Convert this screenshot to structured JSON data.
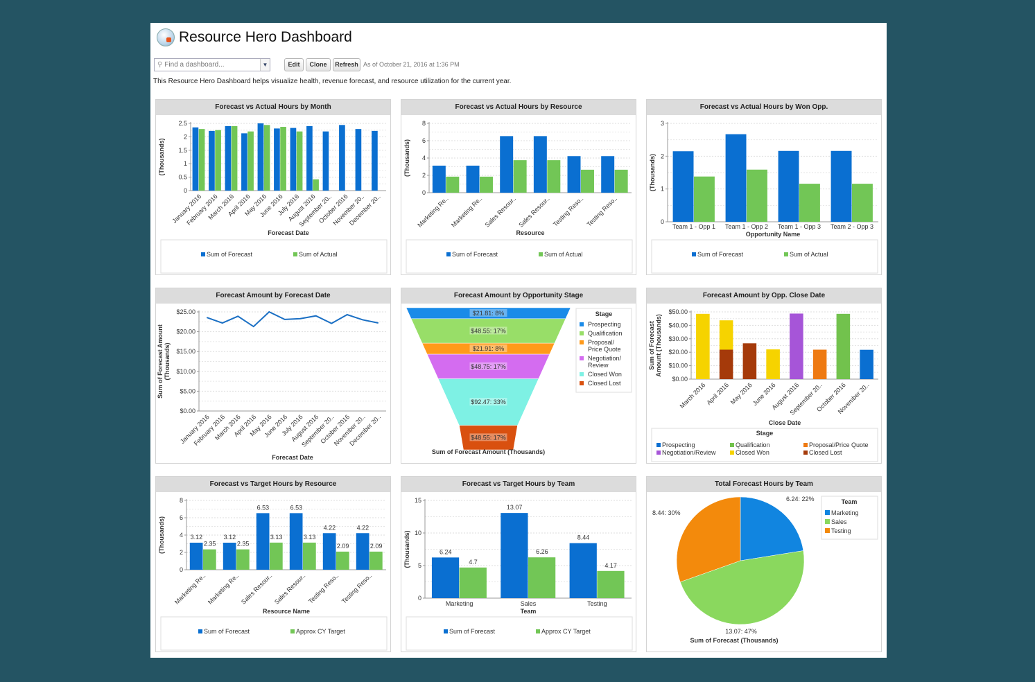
{
  "header": {
    "title": "Resource Hero Dashboard",
    "search_placeholder": "Find a dashboard...",
    "buttons": {
      "edit": "Edit",
      "clone": "Clone",
      "refresh": "Refresh"
    },
    "timestamp": "As of October 21, 2016 at 1:36 PM",
    "description": "This Resource Hero Dashboard helps visualize health, revenue forecast, and resource utilization for the current year.",
    "icons": {
      "search": "search-icon",
      "dropdown": "chevron-down-icon",
      "logo": "resource-hero-logo"
    }
  },
  "chart_data": [
    {
      "title": "Forecast vs Actual Hours by Month",
      "type": "bar",
      "xlabel": "Forecast Date",
      "ylabel": [
        "(Thousands)"
      ],
      "ylim": [
        0,
        2.5
      ],
      "yticks": [
        "0",
        "0.5",
        "1",
        "1.5",
        "2",
        "2.5"
      ],
      "grid": true,
      "legend": "bottom",
      "categories": [
        "January 2016",
        "February 2016",
        "March 2016",
        "April 2016",
        "May 2016",
        "June 2016",
        "July 2016",
        "August 2016",
        "September 20..",
        "October 2016",
        "November 20..",
        "December 20.."
      ],
      "series": [
        {
          "name": "Sum of Forecast",
          "color": "#0a6fd1",
          "values": [
            2.35,
            2.22,
            2.4,
            2.13,
            2.5,
            2.31,
            2.33,
            2.4,
            2.2,
            2.44,
            2.29,
            2.22
          ]
        },
        {
          "name": "Sum of Actual",
          "color": "#72c656",
          "values": [
            2.29,
            2.25,
            2.4,
            2.2,
            2.44,
            2.37,
            2.2,
            0.42,
            null,
            null,
            null,
            null
          ]
        }
      ]
    },
    {
      "title": "Forecast vs Actual Hours by Resource",
      "type": "bar",
      "xlabel": "Resource",
      "ylabel": [
        "(Thousands)"
      ],
      "ylim": [
        0,
        8
      ],
      "yticks": [
        "0",
        "2",
        "4",
        "6",
        "8"
      ],
      "grid": true,
      "legend": "bottom",
      "categories": [
        "Marketing Re..",
        "Marketing Re..",
        "Sales Resour..",
        "Sales Resour..",
        "Testing Reso..",
        "Testing Reso.."
      ],
      "series": [
        {
          "name": "Sum of Forecast",
          "color": "#0a6fd1",
          "values": [
            3.12,
            3.12,
            6.53,
            6.53,
            4.22,
            4.22
          ]
        },
        {
          "name": "Sum of Actual",
          "color": "#72c656",
          "values": [
            1.85,
            1.85,
            3.75,
            3.75,
            2.65,
            2.65
          ]
        }
      ]
    },
    {
      "title": "Forecast vs Actual Hours by Won Opp.",
      "type": "bar",
      "xlabel": "Opportunity Name",
      "ylabel": [
        "(Thousands)"
      ],
      "ylim": [
        0,
        3
      ],
      "yticks": [
        "0",
        "1",
        "2",
        "3"
      ],
      "grid": true,
      "legend": "bottom",
      "categories": [
        "Team 1 - Opp 1",
        "Team 1 - Opp 2",
        "Team 1 - Opp 3",
        "Team 2 - Opp 3"
      ],
      "series": [
        {
          "name": "Sum of Forecast",
          "color": "#0a6fd1",
          "values": [
            2.15,
            2.67,
            2.16,
            2.16
          ]
        },
        {
          "name": "Sum of Actual",
          "color": "#72c656",
          "values": [
            1.38,
            1.59,
            1.16,
            1.16
          ]
        }
      ]
    },
    {
      "title": "Forecast Amount by Forecast Date",
      "type": "line",
      "xlabel": "Forecast Date",
      "ylabel": [
        "Sum of Forecast Amount",
        "(Thousands)"
      ],
      "ylim": [
        0,
        25
      ],
      "yticks": [
        "$0.00",
        "$5.00",
        "$10.00",
        "$15.00",
        "$20.00",
        "$25.00"
      ],
      "grid": true,
      "categories": [
        "January 2016",
        "February 2016",
        "March 2016",
        "April 2016",
        "May 2016",
        "June 2016",
        "July 2016",
        "August 2016",
        "September 20..",
        "October 2016",
        "November 20..",
        "December 20.."
      ],
      "series": [
        {
          "color": "#1a6fc4",
          "values": [
            23.6,
            22.2,
            23.9,
            21.3,
            25.0,
            23.1,
            23.3,
            24.0,
            22.1,
            24.3,
            23.0,
            22.2
          ]
        }
      ]
    },
    {
      "title": "Forecast Amount by Opportunity Stage",
      "type": "funnel",
      "xlabel": "Sum of Forecast Amount (Thousands)",
      "legend_title": "Stage",
      "legend": "right",
      "stages": [
        {
          "name": "Prospecting",
          "color": "#1a8be8",
          "value": 21.81,
          "label": "$21.81: 8%"
        },
        {
          "name": "Qualification",
          "color": "#98de68",
          "value": 48.55,
          "label": "$48.55: 17%"
        },
        {
          "name": "Proposal/ Price Quote",
          "color": "#ff9a1a",
          "value": 21.91,
          "label": "$21.91: 8%"
        },
        {
          "name": "Negotiation/ Review",
          "color": "#d46cf0",
          "value": 48.75,
          "label": "$48.75: 17%"
        },
        {
          "name": "Closed Won",
          "color": "#7ef1e4",
          "value": 92.47,
          "label": "$92.47: 33%"
        },
        {
          "name": "Closed Lost",
          "color": "#d9500f",
          "value": 48.55,
          "label": "$48.55: 17%"
        }
      ]
    },
    {
      "title": "Forecast Amount by Opp. Close Date",
      "type": "bar",
      "stacked": true,
      "xlabel": "Close Date",
      "ylabel": [
        "Sum of Forecast",
        "Amount (Thousands)"
      ],
      "ylim": [
        0,
        50
      ],
      "yticks": [
        "$0.00",
        "$10.00",
        "$20.00",
        "$30.00",
        "$40.00",
        "$50.00"
      ],
      "grid": true,
      "legend": "bottom",
      "legend_title": "Stage",
      "categories": [
        "March 2016",
        "April 2016",
        "May 2016",
        "June 2016",
        "August 2016",
        "September 20..",
        "October 2016",
        "November 20.."
      ],
      "series": [
        {
          "name": "Prospecting",
          "color": "#0a6fd1",
          "values": [
            0,
            0,
            0,
            0,
            0,
            0,
            0,
            21.81
          ]
        },
        {
          "name": "Qualification",
          "color": "#72c24d",
          "values": [
            0,
            0,
            0,
            0,
            0,
            0,
            48.55,
            0
          ]
        },
        {
          "name": "Proposal/Price Quote",
          "color": "#ee7a12",
          "values": [
            0,
            0,
            0,
            0,
            0,
            21.91,
            0,
            0
          ]
        },
        {
          "name": "Negotiation/Review",
          "color": "#a655d8",
          "values": [
            0,
            0,
            0,
            0,
            48.75,
            0,
            0,
            0
          ]
        },
        {
          "name": "Closed Won",
          "color": "#f6d300",
          "values": [
            48.55,
            21.81,
            0,
            22.11,
            0,
            0,
            0,
            0
          ]
        },
        {
          "name": "Closed Lost",
          "color": "#a53a0a",
          "values": [
            0,
            21.91,
            26.64,
            0,
            0,
            0,
            0,
            0
          ]
        }
      ]
    },
    {
      "title": "Forecast vs Target Hours by Resource",
      "type": "bar",
      "show_values": true,
      "xlabel": "Resource Name",
      "ylabel": [
        "(Thousands)"
      ],
      "ylim": [
        0,
        8
      ],
      "yticks": [
        "0",
        "2",
        "4",
        "6",
        "8"
      ],
      "grid": true,
      "legend": "bottom",
      "categories": [
        "Marketing Re..",
        "Marketing Re..",
        "Sales Resour..",
        "Sales Resour..",
        "Testing Reso..",
        "Testing Reso.."
      ],
      "series": [
        {
          "name": "Sum of Forecast",
          "color": "#0a6fd1",
          "values": [
            3.12,
            3.12,
            6.53,
            6.53,
            4.22,
            4.22
          ]
        },
        {
          "name": "Approx CY Target",
          "color": "#72c656",
          "values": [
            2.35,
            2.35,
            3.13,
            3.13,
            2.09,
            2.09
          ]
        }
      ]
    },
    {
      "title": "Forecast vs Target Hours by Team",
      "type": "bar",
      "show_values": true,
      "xlabel": "Team",
      "ylabel": [
        "(Thousands)"
      ],
      "ylim": [
        0,
        15
      ],
      "yticks": [
        "0",
        "5",
        "10",
        "15"
      ],
      "grid": true,
      "legend": "bottom",
      "categories": [
        "Marketing",
        "Sales",
        "Testing"
      ],
      "series": [
        {
          "name": "Sum of Forecast",
          "color": "#0a6fd1",
          "values": [
            6.24,
            13.07,
            8.44
          ]
        },
        {
          "name": "Approx CY Target",
          "color": "#72c656",
          "values": [
            4.7,
            6.26,
            4.17
          ]
        }
      ]
    },
    {
      "title": "Total Forecast Hours by Team",
      "type": "pie",
      "xlabel": "Sum of Forecast (Thousands)",
      "legend_title": "Team",
      "legend": "right",
      "slices": [
        {
          "name": "Marketing",
          "color": "#1185e0",
          "value": 6.24,
          "label": "6.24: 22%"
        },
        {
          "name": "Sales",
          "color": "#8ad85e",
          "value": 13.07,
          "label": "13.07: 47%"
        },
        {
          "name": "Testing",
          "color": "#f38a0c",
          "value": 8.44,
          "label": "8.44: 30%"
        }
      ]
    }
  ]
}
